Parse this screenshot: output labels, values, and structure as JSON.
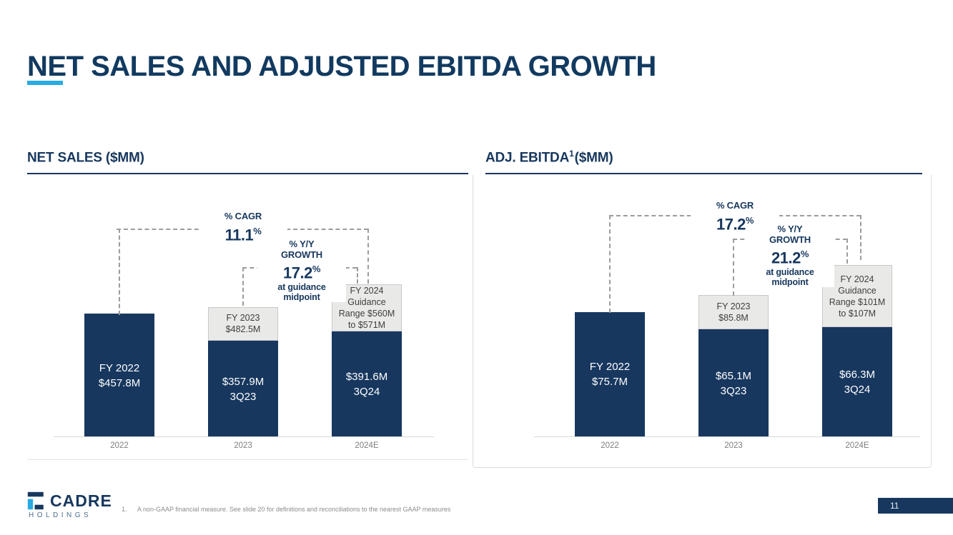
{
  "slide": {
    "title": "NET SALES AND ADJUSTED EBITDA GROWTH",
    "page_number": "11",
    "logo": {
      "brand": "CADRE",
      "sub": "HOLDINGS"
    },
    "footnote": {
      "number": "1.",
      "text": "A non-GAAP financial measure. See slide 20 for definitions and reconciliations to the nearest GAAP measures"
    }
  },
  "colors": {
    "navy": "#17375E",
    "accent_blue": "#29ABE2",
    "callout_fill": "#E9E9E8",
    "callout_border": "#C9C9C9",
    "dash_gray": "#9C9C9C",
    "axis_label_gray": "#7F7F7F"
  },
  "chart_data": [
    {
      "type": "bar",
      "title": "NET SALES ($MM)",
      "title_sup": "",
      "title_rest": "",
      "categories": [
        "2022",
        "2023",
        "2024E"
      ],
      "ylim": [
        0,
        600
      ],
      "legend": "none",
      "bars": [
        {
          "category": "2022",
          "navy_value": 457.8,
          "total_value": 457.8,
          "bar_lines": [
            "FY 2022",
            "$457.8M"
          ],
          "callout_lines": []
        },
        {
          "category": "2023",
          "navy_value": 357.9,
          "total_value": 482.5,
          "bar_lines": [
            "$357.9M",
            "3Q23"
          ],
          "callout_lines": [
            "FY 2023",
            "$482.5M"
          ]
        },
        {
          "category": "2024E",
          "navy_value": 391.6,
          "total_value": 565.5,
          "bar_lines": [
            "$391.6M",
            "3Q24"
          ],
          "callout_lines": [
            "FY 2024",
            "Guidance",
            "Range $560M",
            "to $571M"
          ]
        }
      ],
      "annotations": {
        "cagr": {
          "label": "% CAGR",
          "value": "11.1",
          "unit": "%"
        },
        "yoy": {
          "label_line1": "% Y/Y",
          "label_line2": "GROWTH",
          "value": "17.2",
          "unit": "%",
          "note_line1": "at guidance",
          "note_line2": "midpoint"
        }
      }
    },
    {
      "type": "bar",
      "title": "ADJ. EBITDA",
      "title_sup": "1",
      "title_rest": "($MM)",
      "categories": [
        "2022",
        "2023",
        "2024E"
      ],
      "ylim": [
        0,
        110
      ],
      "legend": "none",
      "bars": [
        {
          "category": "2022",
          "navy_value": 75.7,
          "total_value": 75.7,
          "bar_lines": [
            "FY 2022",
            "$75.7M"
          ],
          "callout_lines": []
        },
        {
          "category": "2023",
          "navy_value": 65.1,
          "total_value": 85.8,
          "bar_lines": [
            "$65.1M",
            "3Q23"
          ],
          "callout_lines": [
            "FY 2023",
            "$85.8M"
          ]
        },
        {
          "category": "2024E",
          "navy_value": 66.3,
          "total_value": 104.0,
          "bar_lines": [
            "$66.3M",
            "3Q24"
          ],
          "callout_lines": [
            "FY 2024",
            "Guidance",
            "Range $101M",
            "to $107M"
          ]
        }
      ],
      "annotations": {
        "cagr": {
          "label": "% CAGR",
          "value": "17.2",
          "unit": "%"
        },
        "yoy": {
          "label_line1": "% Y/Y",
          "label_line2": "GROWTH",
          "value": "21.2",
          "unit": "%",
          "note_line1": "at guidance",
          "note_line2": "midpoint"
        }
      }
    }
  ]
}
